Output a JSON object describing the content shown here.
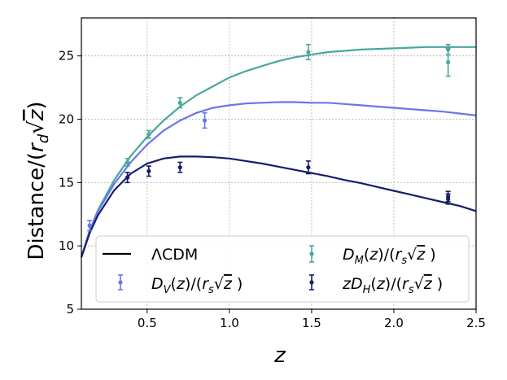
{
  "chart_data": {
    "type": "line",
    "xlabel": "z",
    "ylabel": "Distance/(r_d√z)",
    "xlim": [
      0.1,
      2.5
    ],
    "ylim": [
      5,
      28
    ],
    "xticks": [
      0.5,
      1.0,
      1.5,
      2.0,
      2.5
    ],
    "xtick_labels": [
      "0.5",
      "1.0",
      "1.5",
      "2.0",
      "2.5"
    ],
    "yticks": [
      5,
      10,
      15,
      20,
      25
    ],
    "ytick_labels": [
      "5",
      "10",
      "15",
      "20",
      "25"
    ],
    "grid": true,
    "legend_position": "bottom",
    "models": [
      {
        "name": "ΛCDM",
        "color": "#000000",
        "curves": [
          {
            "color": "#4aa79c",
            "x": [
              0.1,
              0.15,
              0.2,
              0.3,
              0.4,
              0.5,
              0.6,
              0.7,
              0.8,
              0.9,
              1.0,
              1.1,
              1.2,
              1.3,
              1.4,
              1.5,
              1.6,
              1.7,
              1.8,
              1.9,
              2.0,
              2.1,
              2.2,
              2.3,
              2.4,
              2.5
            ],
            "y": [
              9.1,
              11.2,
              12.8,
              15.2,
              17.1,
              18.6,
              19.9,
              21.0,
              21.9,
              22.6,
              23.3,
              23.8,
              24.2,
              24.6,
              24.9,
              25.1,
              25.3,
              25.4,
              25.5,
              25.55,
              25.6,
              25.65,
              25.7,
              25.7,
              25.7,
              25.7
            ]
          },
          {
            "color": "#6b76e8",
            "x": [
              0.1,
              0.15,
              0.2,
              0.3,
              0.4,
              0.5,
              0.6,
              0.7,
              0.8,
              0.9,
              1.0,
              1.1,
              1.2,
              1.3,
              1.4,
              1.5,
              1.6,
              1.7,
              1.8,
              1.9,
              2.0,
              2.1,
              2.2,
              2.3,
              2.4,
              2.5
            ],
            "y": [
              9.1,
              11.2,
              12.7,
              14.9,
              16.6,
              18.0,
              19.1,
              19.9,
              20.5,
              20.9,
              21.1,
              21.25,
              21.3,
              21.35,
              21.35,
              21.3,
              21.3,
              21.2,
              21.1,
              21.0,
              20.9,
              20.8,
              20.7,
              20.6,
              20.45,
              20.3
            ]
          },
          {
            "color": "#151d6d",
            "x": [
              0.1,
              0.15,
              0.2,
              0.3,
              0.4,
              0.5,
              0.6,
              0.7,
              0.8,
              0.9,
              1.0,
              1.1,
              1.2,
              1.3,
              1.4,
              1.5,
              1.6,
              1.7,
              1.8,
              1.9,
              2.0,
              2.1,
              2.2,
              2.3,
              2.4,
              2.5
            ],
            "y": [
              9.1,
              11.0,
              12.4,
              14.4,
              15.7,
              16.5,
              16.9,
              17.05,
              17.05,
              17.0,
              16.9,
              16.7,
              16.5,
              16.25,
              16.0,
              15.75,
              15.5,
              15.2,
              14.95,
              14.65,
              14.35,
              14.05,
              13.75,
              13.45,
              13.15,
              12.75
            ]
          }
        ]
      }
    ],
    "series": [
      {
        "name": "D_V(z)/(r_s√z)",
        "color": "#6b76e8",
        "points": [
          {
            "x": 0.15,
            "y": 11.6,
            "err": 0.4
          },
          {
            "x": 0.85,
            "y": 19.9,
            "err": 0.6
          }
        ]
      },
      {
        "name": "D_M(z)/(r_s√z)",
        "color": "#4aa79c",
        "points": [
          {
            "x": 0.38,
            "y": 16.6,
            "err": 0.3
          },
          {
            "x": 0.51,
            "y": 18.8,
            "err": 0.3
          },
          {
            "x": 0.7,
            "y": 21.3,
            "err": 0.4
          },
          {
            "x": 1.48,
            "y": 25.3,
            "err": 0.6
          },
          {
            "x": 2.33,
            "y": 25.5,
            "err": 0.4
          },
          {
            "x": 2.33,
            "y": 24.5,
            "err": 1.1
          }
        ]
      },
      {
        "name": "zD_H(z)/(r_s√z)",
        "color": "#151d6d",
        "points": [
          {
            "x": 0.38,
            "y": 15.4,
            "err": 0.4
          },
          {
            "x": 0.51,
            "y": 15.9,
            "err": 0.4
          },
          {
            "x": 0.7,
            "y": 16.2,
            "err": 0.4
          },
          {
            "x": 1.48,
            "y": 16.2,
            "err": 0.5
          },
          {
            "x": 2.33,
            "y": 13.9,
            "err": 0.4
          },
          {
            "x": 2.33,
            "y": 13.7,
            "err": 0.4
          }
        ]
      }
    ]
  }
}
